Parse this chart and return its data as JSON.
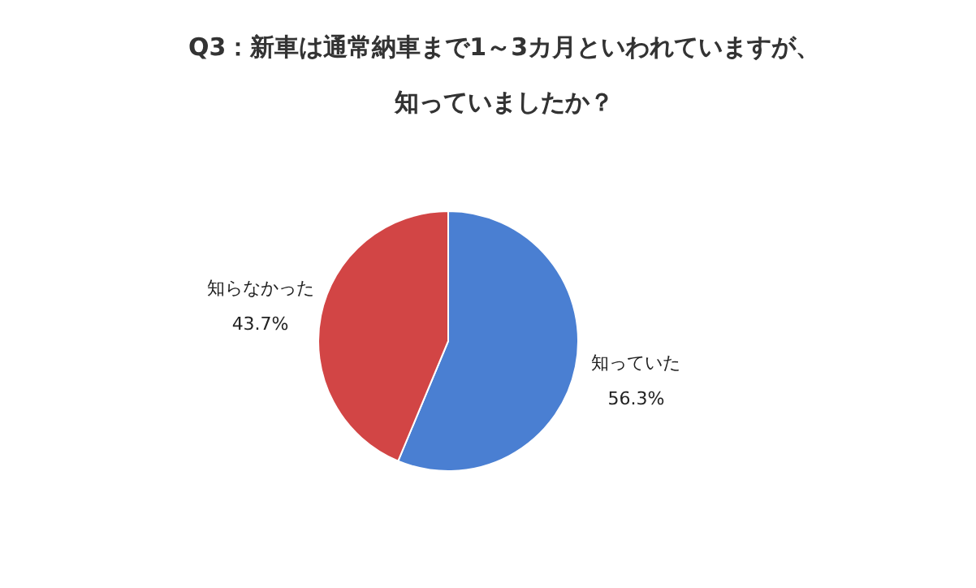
{
  "chart_data": {
    "type": "pie",
    "title": "Q3：新車は通常納車まで1～3カ月といわれていますが、知っていましたか？",
    "categories": [
      "知っていた",
      "知らなかった"
    ],
    "values": [
      56.3,
      43.7
    ],
    "value_labels": [
      "56.3%",
      "43.7%"
    ],
    "colors": [
      "#4a7fd2",
      "#d24545"
    ],
    "legend": false
  }
}
